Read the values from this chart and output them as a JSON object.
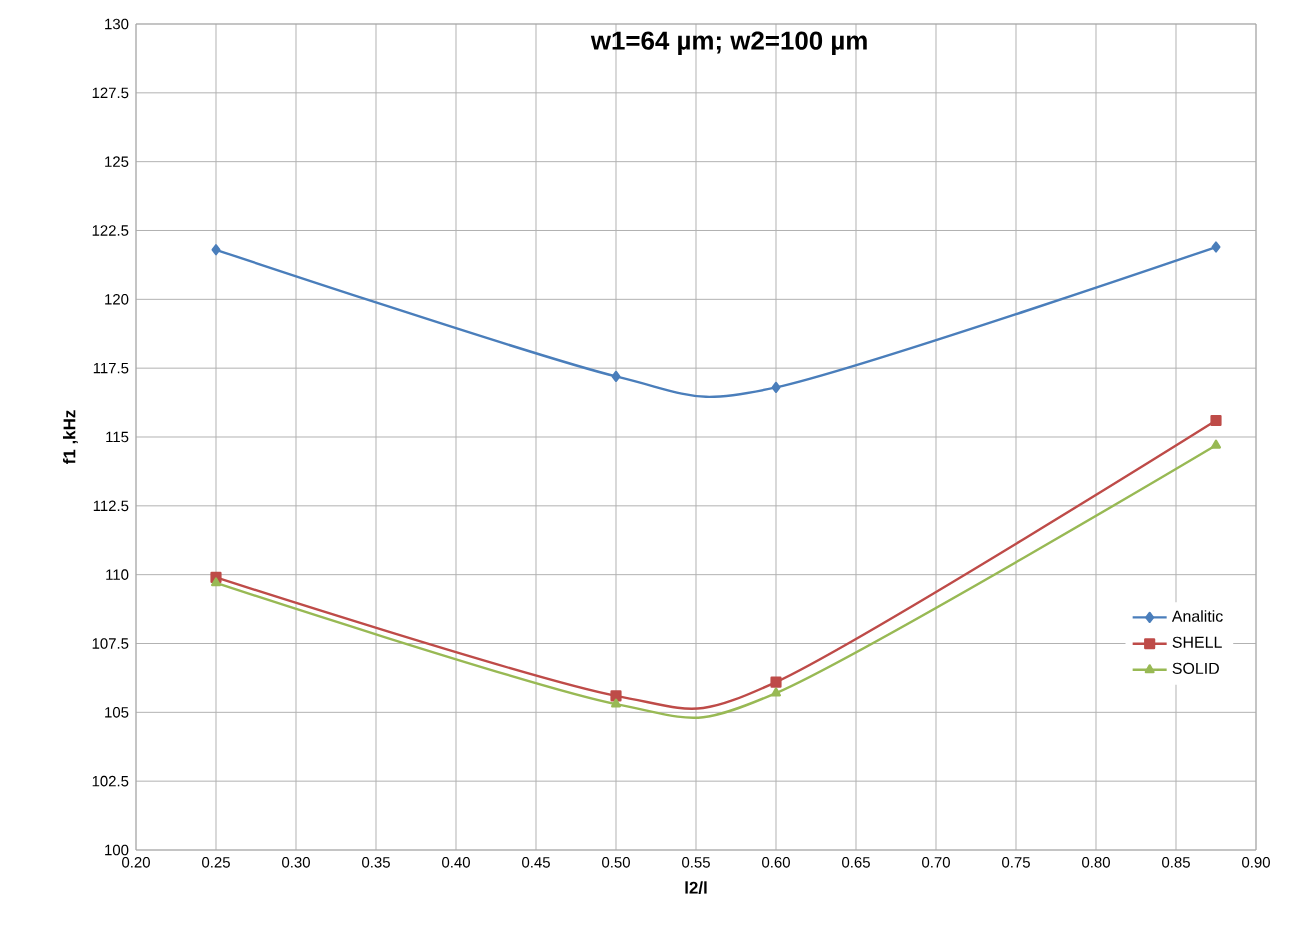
{
  "chart_data": {
    "type": "line",
    "title": "w1=64  µm; w2=100  µm",
    "xlabel": "l2/l",
    "ylabel": "f1 ,kHz",
    "x": [
      0.25,
      0.5,
      0.6,
      0.875
    ],
    "series": [
      {
        "name": "Analitic",
        "color": "#4a7ebb",
        "marker": "diamond",
        "values": [
          121.8,
          117.2,
          116.8,
          121.9
        ]
      },
      {
        "name": "SHELL",
        "color": "#be4b48",
        "marker": "square",
        "values": [
          109.9,
          105.6,
          106.1,
          115.6
        ]
      },
      {
        "name": "SOLID",
        "color": "#98b954",
        "marker": "triangle",
        "values": [
          109.7,
          105.3,
          105.7,
          114.7
        ]
      }
    ],
    "xlim": [
      0.2,
      0.9
    ],
    "xticks": [
      {
        "value": 0.2,
        "label": "0.20"
      },
      {
        "value": 0.25,
        "label": "0.25"
      },
      {
        "value": 0.3,
        "label": "0.30"
      },
      {
        "value": 0.35,
        "label": "0.35"
      },
      {
        "value": 0.4,
        "label": "0.40"
      },
      {
        "value": 0.45,
        "label": "0.45"
      },
      {
        "value": 0.5,
        "label": "0.50"
      },
      {
        "value": 0.55,
        "label": "0.55"
      },
      {
        "value": 0.6,
        "label": "0.60"
      },
      {
        "value": 0.65,
        "label": "0.65"
      },
      {
        "value": 0.7,
        "label": "0.70"
      },
      {
        "value": 0.75,
        "label": "0.75"
      },
      {
        "value": 0.8,
        "label": "0.80"
      },
      {
        "value": 0.85,
        "label": "0.85"
      },
      {
        "value": 0.9,
        "label": "0.90"
      }
    ],
    "ylim": [
      100,
      130
    ],
    "yticks": [
      100,
      102.5,
      105,
      107.5,
      110,
      112.5,
      115,
      117.5,
      120,
      122.5,
      125,
      127.5,
      130
    ],
    "grid": true,
    "legend": "right",
    "line_style": "solid"
  }
}
